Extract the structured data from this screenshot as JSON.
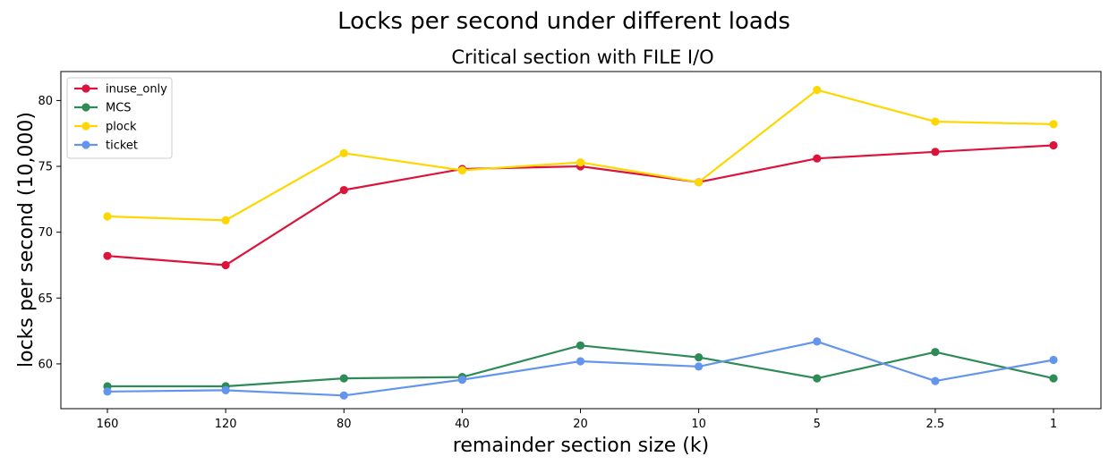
{
  "chart_data": {
    "type": "line",
    "suptitle": "Locks per second under different loads",
    "title": "Critical section with FILE I/O",
    "xlabel": "remainder section size (k)",
    "ylabel": "locks per second (10,000)",
    "categories": [
      "160",
      "120",
      "80",
      "40",
      "20",
      "10",
      "5",
      "2.5",
      "1"
    ],
    "ylim": [
      56.6,
      82.2
    ],
    "yticks": [
      60,
      65,
      70,
      75,
      80
    ],
    "grid": false,
    "legend_position": "top-left",
    "series": [
      {
        "name": "inuse_only",
        "color": "#dc143c",
        "values": [
          68.2,
          67.5,
          73.2,
          74.8,
          75.0,
          73.8,
          75.6,
          76.1,
          76.6
        ]
      },
      {
        "name": "MCS",
        "color": "#2e8b57",
        "values": [
          58.3,
          58.3,
          58.9,
          59.0,
          61.4,
          60.5,
          58.9,
          60.9,
          58.9
        ]
      },
      {
        "name": "plock",
        "color": "#ffd700",
        "values": [
          71.2,
          70.9,
          76.0,
          74.7,
          75.3,
          73.8,
          80.8,
          78.4,
          78.2
        ]
      },
      {
        "name": "ticket",
        "color": "#6495ed",
        "values": [
          57.9,
          58.0,
          57.6,
          58.8,
          60.2,
          59.8,
          61.7,
          58.7,
          60.3
        ]
      }
    ]
  }
}
